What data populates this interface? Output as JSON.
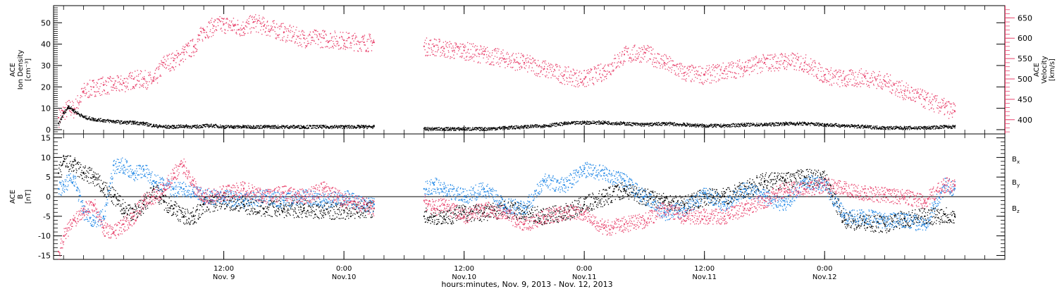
{
  "colors": {
    "velocity": "#e8426c",
    "bx": "#000000",
    "by": "#1e86e6",
    "bz": "#e8426c",
    "density": "#000000",
    "axis": "#000000"
  },
  "chart_data": [
    {
      "type": "scatter",
      "panel": "top",
      "ylabel": [
        "ACE",
        "Ion Density",
        "[cm⁻³]"
      ],
      "ylim": [
        -2,
        58
      ],
      "yticks": [
        0,
        10,
        20,
        30,
        40,
        50
      ],
      "ytick_labels": [
        "0",
        "10",
        "20",
        "30",
        "40",
        "50"
      ],
      "y2label": [
        "ACE",
        "Velocity",
        "[km/s]"
      ],
      "y2lim": [
        365,
        680
      ],
      "y2ticks": [
        400,
        450,
        500,
        550,
        600,
        650
      ],
      "y2tick_labels": [
        "400",
        "450",
        "500",
        "550",
        "600",
        "650"
      ],
      "xlim": [
        -5,
        90
      ],
      "data_gap": [
        27,
        32
      ],
      "series": [
        {
          "name": "Ion Density",
          "axis": "left",
          "x": [
            -4.5,
            -4,
            -3.5,
            -3,
            -2,
            -1,
            0,
            1,
            2,
            3,
            4,
            5,
            6,
            7,
            8,
            9,
            10,
            11,
            12,
            13,
            14,
            15,
            16,
            18,
            20,
            22,
            24,
            26,
            27,
            32,
            33,
            34,
            35,
            36,
            38,
            40,
            42,
            44,
            46,
            48,
            50,
            52,
            54,
            56,
            58,
            60,
            62,
            64,
            66,
            68,
            70,
            72,
            74,
            76,
            78,
            80,
            82,
            84,
            85
          ],
          "values": [
            3,
            8,
            11,
            9,
            6,
            5,
            4.5,
            4,
            3.5,
            3.5,
            3,
            2,
            1.5,
            1.5,
            1.8,
            1.5,
            2,
            2,
            1.5,
            1.5,
            1.5,
            1.5,
            1.5,
            1.5,
            1.5,
            1.5,
            1.5,
            1.5,
            1.5,
            0.5,
            0.5,
            0.5,
            0.5,
            0.5,
            0.5,
            1,
            1.5,
            2,
            3,
            3.5,
            3.5,
            3,
            2.5,
            3,
            2.5,
            2,
            2,
            2.5,
            2.5,
            3,
            3,
            2.5,
            2,
            1.5,
            1,
            1,
            1,
            1.5,
            1.5
          ]
        },
        {
          "name": "Velocity",
          "axis": "right",
          "x": [
            -4.5,
            -4,
            -3.5,
            -3,
            -2,
            -1,
            0,
            1,
            2,
            3,
            4,
            5,
            6,
            7,
            8,
            9,
            10,
            11,
            12,
            13,
            14,
            15,
            16,
            18,
            20,
            22,
            24,
            26,
            27,
            32,
            33,
            34,
            35,
            36,
            38,
            40,
            42,
            44,
            46,
            48,
            50,
            52,
            54,
            56,
            58,
            60,
            62,
            64,
            66,
            68,
            70,
            72,
            74,
            76,
            78,
            80,
            82,
            84,
            85
          ],
          "values": [
            405,
            420,
            430,
            425,
            470,
            480,
            485,
            485,
            490,
            500,
            500,
            495,
            540,
            545,
            565,
            580,
            620,
            630,
            635,
            630,
            625,
            640,
            630,
            615,
            600,
            600,
            595,
            590,
            590,
            580,
            580,
            575,
            570,
            570,
            560,
            550,
            540,
            525,
            510,
            500,
            520,
            560,
            565,
            540,
            515,
            510,
            520,
            530,
            540,
            545,
            540,
            510,
            500,
            505,
            495,
            470,
            450,
            430,
            420
          ]
        }
      ]
    },
    {
      "type": "scatter",
      "panel": "bottom",
      "ylabel": [
        "ACE",
        "B",
        "[nT]"
      ],
      "ylim": [
        -16,
        16
      ],
      "yticks": [
        -15,
        -10,
        -5,
        0,
        5,
        10,
        15
      ],
      "ytick_labels": [
        "-15",
        "-10",
        "-5",
        "0",
        "5",
        "10",
        "15"
      ],
      "xlim": [
        -5,
        90
      ],
      "xticks": [
        12,
        24,
        36,
        48,
        60,
        72
      ],
      "xtick_labels": [
        "12:00",
        "0:00",
        "12:00",
        "0:00",
        "12:00",
        "0:00"
      ],
      "xtick_sublabels": [
        "Nov. 9",
        "Nov.10",
        "Nov.10",
        "Nov.11",
        "Nov.11",
        "Nov.12"
      ],
      "xlabel": "hours:minutes, Nov.  9, 2013 - Nov. 12, 2013",
      "legend": [
        "B",
        "B",
        "B"
      ],
      "legend_subscripts": [
        "x",
        "y",
        "z"
      ],
      "legend_position": "right",
      "zero_line": true,
      "data_gap": [
        27,
        32
      ],
      "series": [
        {
          "name": "Bx",
          "x": [
            -4.5,
            -4,
            -3,
            -2,
            -1,
            0,
            1,
            2,
            3,
            4,
            5,
            6,
            7,
            8,
            9,
            10,
            12,
            14,
            16,
            18,
            20,
            22,
            24,
            26,
            27,
            32,
            33,
            34,
            36,
            38,
            40,
            42,
            44,
            46,
            48,
            50,
            52,
            54,
            56,
            58,
            60,
            62,
            64,
            66,
            68,
            70,
            72,
            74,
            76,
            78,
            80,
            82,
            84,
            85
          ],
          "values": [
            6,
            9,
            8,
            6,
            5,
            2,
            0,
            -3,
            -4,
            -2,
            2,
            -1,
            -3,
            -5,
            -5,
            -2,
            -1,
            -2,
            -3,
            -3,
            -3,
            -3.5,
            -3.5,
            -3,
            -3,
            -5,
            -5,
            -5,
            -4,
            -4,
            -3,
            -4,
            -5,
            -4,
            -2,
            0,
            2,
            0,
            -1,
            -2,
            0,
            0,
            2,
            4,
            4,
            5,
            4.5,
            -6,
            -6.5,
            -7,
            -5.5,
            -5,
            -4.5,
            -5
          ]
        },
        {
          "name": "By",
          "x": [
            -4.5,
            -4,
            -3,
            -2,
            -1,
            0,
            1,
            2,
            3,
            4,
            5,
            6,
            7,
            8,
            9,
            10,
            12,
            14,
            16,
            18,
            20,
            22,
            24,
            26,
            27,
            32,
            33,
            34,
            36,
            38,
            40,
            42,
            44,
            46,
            48,
            50,
            52,
            54,
            56,
            58,
            60,
            62,
            64,
            66,
            68,
            70,
            72,
            74,
            76,
            78,
            80,
            82,
            84,
            85
          ],
          "values": [
            2,
            3,
            5,
            -4,
            -6,
            -5,
            8,
            8,
            6,
            7,
            4,
            3,
            2,
            2,
            1,
            0,
            0,
            -1,
            0,
            -1,
            0,
            -1,
            0,
            -2,
            -2,
            2,
            3,
            2,
            0,
            2,
            -2,
            -3,
            4,
            3,
            7,
            6,
            4,
            0,
            -4,
            -3,
            1,
            -2,
            2,
            0,
            -2,
            4,
            3,
            -5,
            -5,
            -6,
            -6,
            -7,
            3,
            2
          ]
        },
        {
          "name": "Bz",
          "x": [
            -4.5,
            -4,
            -3,
            -2,
            -1,
            0,
            1,
            2,
            3,
            4,
            5,
            6,
            7,
            8,
            9,
            10,
            12,
            14,
            16,
            18,
            20,
            22,
            24,
            26,
            27,
            32,
            33,
            34,
            36,
            38,
            40,
            42,
            44,
            46,
            48,
            50,
            52,
            54,
            56,
            58,
            60,
            62,
            64,
            66,
            68,
            70,
            72,
            74,
            76,
            78,
            80,
            82,
            84,
            85
          ],
          "values": [
            -14,
            -10,
            -6,
            -3,
            -2,
            -8,
            -9,
            -7,
            -5,
            -1,
            0,
            2,
            6,
            8,
            3,
            0,
            1,
            2,
            0,
            1,
            0,
            2,
            -1,
            -2,
            -3,
            -1,
            -3,
            -2,
            -5,
            -3,
            -4,
            -7,
            -5,
            -4,
            -4,
            -8,
            -7,
            -6,
            -3,
            -5,
            -5,
            -5,
            -3,
            -1,
            2,
            2,
            3,
            2,
            1,
            0.5,
            0,
            -1,
            3,
            3
          ]
        }
      ]
    }
  ]
}
